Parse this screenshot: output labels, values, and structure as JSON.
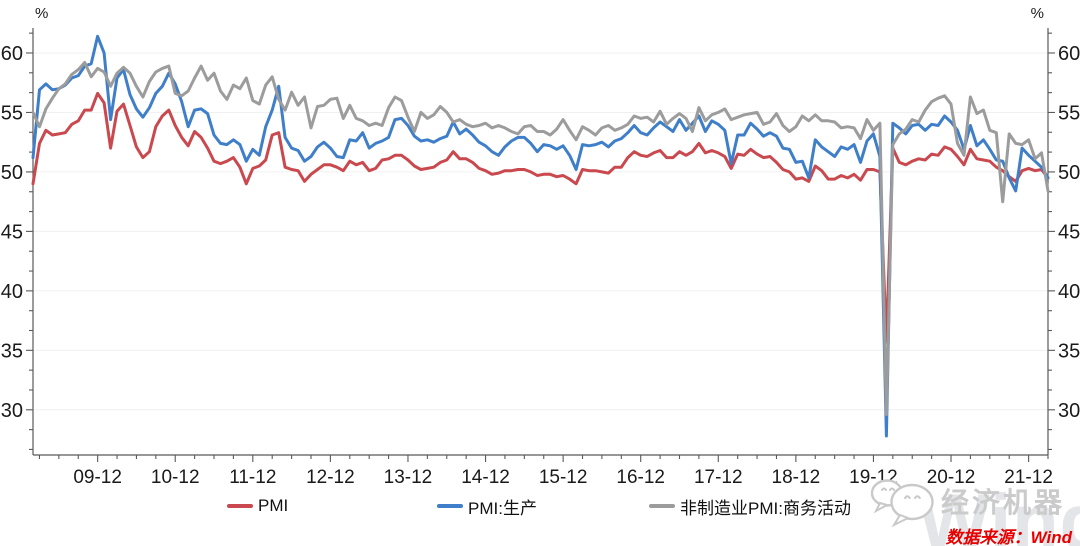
{
  "chart": {
    "unit_label": "%",
    "footer": {
      "source_note": "数据来源：Wind",
      "watermark_wechat_name": "经济机器",
      "watermark_brand": "Wind"
    }
  },
  "chart_data": {
    "type": "line",
    "title": "",
    "xlabel": "",
    "ylabel": "%",
    "x_range": [
      "2009-02",
      "2022-03"
    ],
    "frequency": "monthly",
    "x_tick_labels": [
      "09-12",
      "10-12",
      "11-12",
      "12-12",
      "13-12",
      "14-12",
      "15-12",
      "16-12",
      "17-12",
      "18-12",
      "19-12",
      "20-12",
      "21-12"
    ],
    "y_ticks": [
      30,
      35,
      40,
      45,
      50,
      55,
      60
    ],
    "ylim": [
      26.2,
      62.1
    ],
    "grid": "horizontal-light",
    "legend_position": "bottom-center",
    "axis_color": "#595959",
    "grid_color": "#f0f0f0",
    "series": [
      {
        "id": "pmi",
        "name": "PMI",
        "color": "#c9494e",
        "values": [
          49.0,
          52.4,
          53.5,
          53.1,
          53.2,
          53.3,
          54.0,
          54.3,
          55.2,
          55.2,
          56.6,
          55.8,
          52.0,
          55.1,
          55.7,
          53.9,
          52.1,
          51.2,
          51.7,
          53.8,
          54.7,
          55.2,
          53.9,
          52.9,
          52.2,
          53.4,
          52.9,
          52.0,
          50.9,
          50.7,
          50.9,
          51.2,
          50.4,
          49.0,
          50.3,
          50.5,
          51.0,
          53.1,
          53.3,
          50.4,
          50.2,
          50.1,
          49.2,
          49.8,
          50.2,
          50.6,
          50.6,
          50.4,
          50.1,
          50.9,
          50.6,
          50.8,
          50.1,
          50.3,
          51.0,
          51.1,
          51.4,
          51.4,
          51.0,
          50.5,
          50.2,
          50.3,
          50.4,
          50.8,
          51.0,
          51.7,
          51.1,
          51.1,
          50.8,
          50.3,
          50.1,
          49.8,
          49.9,
          50.1,
          50.1,
          50.2,
          50.2,
          50.0,
          49.7,
          49.8,
          49.8,
          49.6,
          49.7,
          49.4,
          49.0,
          50.2,
          50.1,
          50.1,
          50.0,
          49.9,
          50.4,
          50.4,
          51.2,
          51.7,
          51.4,
          51.3,
          51.6,
          51.8,
          51.2,
          51.2,
          51.7,
          51.4,
          51.7,
          52.4,
          51.6,
          51.8,
          51.6,
          51.3,
          50.3,
          51.5,
          51.4,
          51.9,
          51.5,
          51.2,
          51.3,
          50.8,
          50.2,
          50.0,
          49.4,
          49.5,
          49.2,
          50.5,
          50.1,
          49.4,
          49.4,
          49.7,
          49.5,
          49.8,
          49.3,
          50.2,
          50.2,
          50.0,
          35.7,
          52.0,
          50.8,
          50.6,
          50.9,
          51.1,
          51.0,
          51.5,
          51.4,
          52.1,
          51.9,
          51.3,
          50.6,
          51.9,
          51.1,
          51.0,
          50.9,
          50.4,
          50.1,
          49.6,
          49.2,
          50.1,
          50.3,
          50.1,
          50.2,
          49.5
        ]
      },
      {
        "id": "pmi-production",
        "name": "PMI:生产",
        "color": "#3f7fc9",
        "values": [
          51.2,
          56.9,
          57.4,
          56.9,
          57.0,
          57.3,
          57.9,
          58.1,
          58.9,
          59.1,
          61.4,
          60.0,
          54.4,
          57.9,
          58.6,
          56.5,
          55.3,
          54.6,
          55.4,
          56.6,
          57.2,
          58.3,
          57.4,
          55.9,
          53.8,
          55.2,
          55.3,
          54.9,
          53.1,
          52.4,
          52.3,
          52.7,
          52.3,
          50.9,
          51.9,
          51.4,
          53.8,
          55.2,
          57.2,
          52.9,
          52.0,
          51.8,
          50.9,
          51.3,
          52.1,
          52.5,
          52.0,
          51.3,
          51.2,
          52.7,
          52.6,
          53.3,
          52.0,
          52.4,
          52.6,
          52.9,
          54.4,
          54.5,
          53.9,
          53.0,
          52.6,
          52.7,
          52.5,
          52.8,
          53.0,
          54.2,
          53.2,
          53.6,
          53.1,
          52.5,
          52.2,
          51.7,
          51.4,
          52.1,
          52.6,
          52.9,
          52.9,
          52.4,
          51.7,
          52.3,
          52.2,
          51.9,
          52.2,
          51.4,
          50.2,
          52.3,
          52.2,
          52.3,
          52.5,
          52.1,
          52.6,
          52.8,
          53.3,
          53.9,
          53.3,
          53.1,
          53.7,
          54.2,
          53.8,
          53.4,
          54.4,
          53.5,
          54.1,
          54.7,
          53.4,
          54.3,
          54.0,
          53.5,
          50.7,
          53.1,
          53.1,
          54.1,
          53.6,
          53.0,
          53.3,
          53.0,
          52.0,
          51.9,
          50.8,
          50.9,
          49.5,
          52.7,
          52.1,
          51.7,
          51.3,
          52.1,
          51.9,
          52.3,
          50.8,
          52.6,
          53.2,
          51.3,
          27.8,
          54.1,
          53.7,
          53.2,
          53.9,
          54.0,
          53.5,
          54.0,
          53.9,
          54.7,
          54.2,
          53.5,
          51.9,
          53.9,
          52.2,
          52.7,
          51.9,
          51.0,
          50.9,
          49.5,
          48.4,
          52.0,
          51.4,
          50.9,
          50.4,
          49.5
        ]
      },
      {
        "id": "non-mfg-business-activity",
        "name": "非制造业PMI:商务活动",
        "color": "#9c9c9c",
        "values": [
          55.0,
          53.8,
          55.3,
          56.2,
          57.0,
          57.4,
          58.2,
          58.6,
          59.2,
          58.0,
          58.7,
          58.4,
          57.2,
          58.3,
          58.8,
          58.3,
          57.2,
          56.3,
          57.6,
          58.4,
          58.7,
          58.9,
          56.6,
          56.4,
          56.8,
          57.9,
          58.9,
          57.7,
          58.3,
          56.8,
          56.1,
          57.3,
          57.0,
          57.9,
          56.0,
          55.7,
          57.3,
          58.0,
          56.1,
          55.2,
          56.7,
          55.6,
          56.3,
          53.7,
          55.5,
          55.6,
          56.1,
          56.2,
          54.5,
          55.6,
          54.5,
          54.3,
          53.9,
          54.1,
          53.9,
          55.4,
          56.3,
          56.0,
          54.6,
          53.4,
          55.0,
          54.5,
          54.8,
          55.5,
          55.0,
          54.2,
          54.4,
          54.0,
          53.8,
          53.9,
          54.1,
          53.7,
          53.9,
          53.7,
          53.4,
          53.2,
          53.8,
          53.9,
          53.4,
          53.4,
          53.1,
          53.6,
          54.4,
          53.5,
          52.7,
          53.8,
          53.5,
          53.1,
          53.7,
          53.9,
          53.5,
          53.7,
          54.0,
          54.7,
          54.5,
          54.6,
          54.2,
          55.1,
          54.0,
          54.5,
          54.9,
          54.5,
          53.4,
          55.4,
          54.3,
          54.8,
          55.0,
          55.3,
          54.4,
          54.6,
          54.8,
          54.9,
          55.0,
          54.0,
          54.2,
          54.9,
          53.9,
          53.4,
          53.8,
          54.7,
          54.3,
          54.8,
          54.3,
          54.3,
          54.2,
          53.7,
          53.8,
          53.7,
          52.8,
          54.4,
          53.5,
          54.1,
          29.6,
          52.3,
          53.2,
          53.6,
          54.4,
          54.2,
          55.2,
          55.9,
          56.2,
          56.4,
          55.7,
          52.4,
          51.4,
          56.3,
          54.9,
          55.2,
          53.5,
          53.3,
          47.5,
          53.2,
          52.4,
          52.3,
          52.7,
          51.1,
          51.6,
          48.4
        ]
      }
    ]
  }
}
